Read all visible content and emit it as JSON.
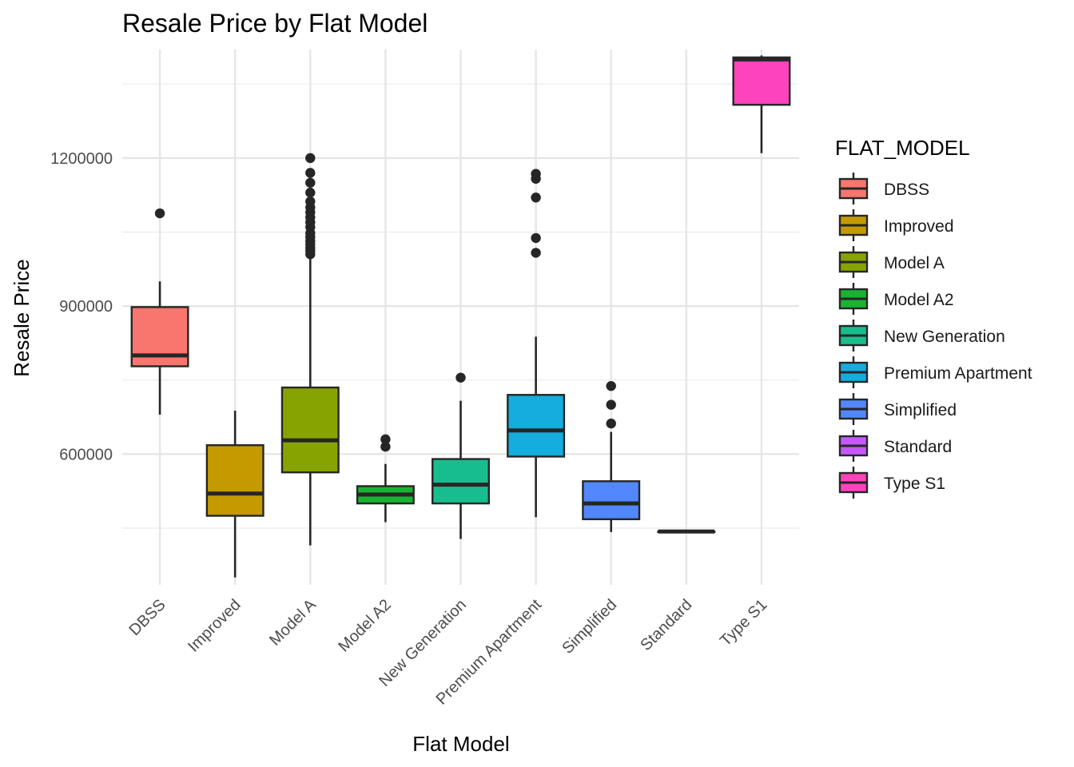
{
  "chart_data": {
    "type": "boxplot",
    "title": "Resale Price by Flat Model",
    "xlabel": "Flat Model",
    "ylabel": "Resale Price",
    "ylim": [
      335000,
      1420000
    ],
    "yticks": [
      600000,
      900000,
      1200000
    ],
    "grid": true,
    "legend": {
      "title": "FLAT_MODEL",
      "position": "right"
    },
    "categories": [
      "DBSS",
      "Improved",
      "Model A",
      "Model A2",
      "New Generation",
      "Premium Apartment",
      "Simplified",
      "Standard",
      "Type S1"
    ],
    "colors": [
      "#F8766D",
      "#C49A00",
      "#87A300",
      "#18B431",
      "#18BD8E",
      "#15ADDE",
      "#5187FF",
      "#C558FD",
      "#FD43BD"
    ],
    "boxes": [
      {
        "name": "DBSS",
        "lower_whisker": 680000,
        "q1": 778000,
        "median": 800000,
        "q3": 898000,
        "upper_whisker": 950000,
        "outliers": [
          1088000
        ]
      },
      {
        "name": "Improved",
        "lower_whisker": 350000,
        "q1": 475000,
        "median": 520000,
        "q3": 618000,
        "upper_whisker": 688000,
        "outliers": []
      },
      {
        "name": "Model A",
        "lower_whisker": 415000,
        "q1": 563000,
        "median": 628000,
        "q3": 735000,
        "upper_whisker": 1000000,
        "outliers": [
          1005000,
          1012000,
          1018000,
          1025000,
          1032000,
          1040000,
          1048000,
          1060000,
          1070000,
          1080000,
          1090000,
          1100000,
          1112000,
          1130000,
          1150000,
          1170000,
          1200000
        ]
      },
      {
        "name": "Model A2",
        "lower_whisker": 462000,
        "q1": 500000,
        "median": 518000,
        "q3": 535000,
        "upper_whisker": 580000,
        "outliers": [
          615000,
          630000
        ]
      },
      {
        "name": "New Generation",
        "lower_whisker": 428000,
        "q1": 500000,
        "median": 538000,
        "q3": 590000,
        "upper_whisker": 708000,
        "outliers": [
          755000
        ]
      },
      {
        "name": "Premium Apartment",
        "lower_whisker": 472000,
        "q1": 595000,
        "median": 648000,
        "q3": 720000,
        "upper_whisker": 838000,
        "outliers": [
          1008000,
          1038000,
          1120000,
          1158000,
          1168000
        ]
      },
      {
        "name": "Simplified",
        "lower_whisker": 442000,
        "q1": 468000,
        "median": 500000,
        "q3": 545000,
        "upper_whisker": 645000,
        "outliers": [
          662000,
          700000,
          738000
        ]
      },
      {
        "name": "Standard",
        "lower_whisker": 443000,
        "q1": 443000,
        "median": 443000,
        "q3": 443000,
        "upper_whisker": 443000,
        "outliers": []
      },
      {
        "name": "Type S1",
        "lower_whisker": 1210000,
        "q1": 1308000,
        "median": 1400000,
        "q3": 1404000,
        "upper_whisker": 1408000,
        "outliers": []
      }
    ]
  }
}
